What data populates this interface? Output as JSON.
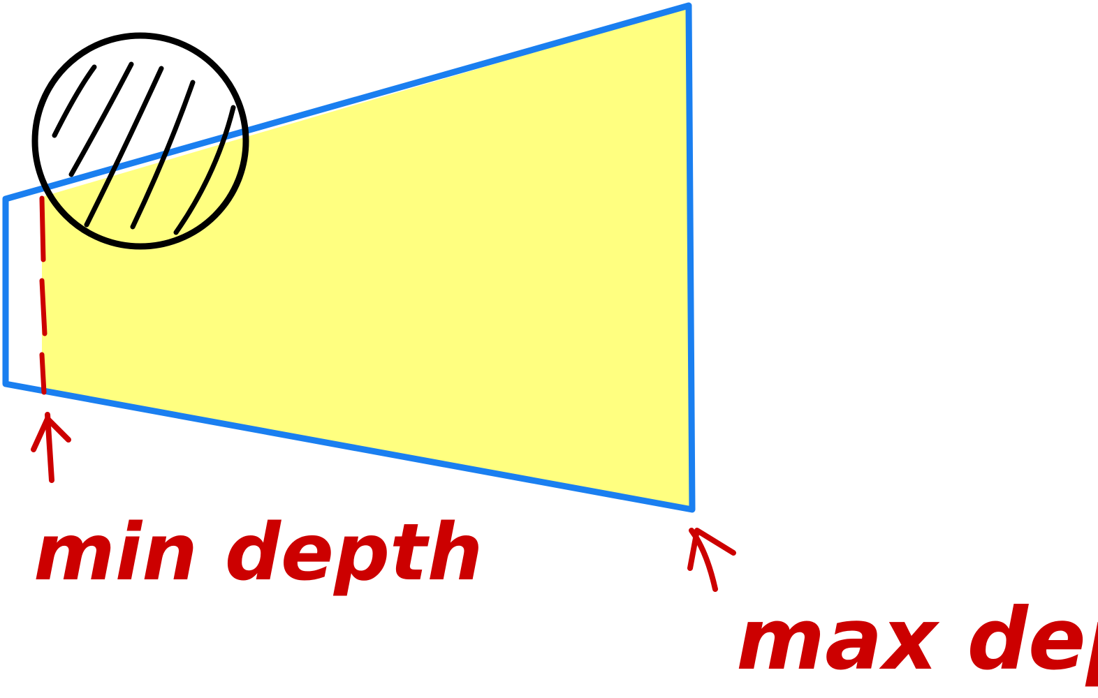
{
  "labels": {
    "near_plane": "min depth",
    "far_plane": "max depth"
  },
  "colors": {
    "frustum_fill": "#ffff80",
    "frustum_outline": "#1a7ff0",
    "annotation": "#cc0000",
    "occluder": "#000000"
  }
}
